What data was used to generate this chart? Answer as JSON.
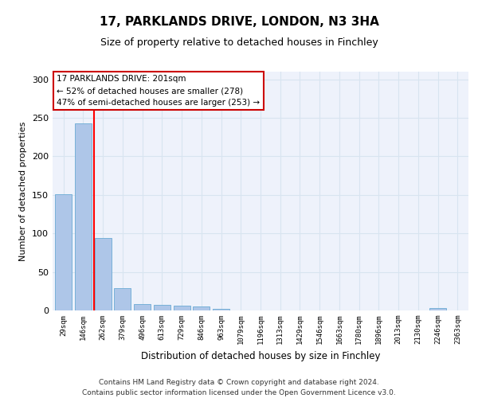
{
  "title1": "17, PARKLANDS DRIVE, LONDON, N3 3HA",
  "title2": "Size of property relative to detached houses in Finchley",
  "xlabel": "Distribution of detached houses by size in Finchley",
  "ylabel": "Number of detached properties",
  "categories": [
    "29sqm",
    "146sqm",
    "262sqm",
    "379sqm",
    "496sqm",
    "613sqm",
    "729sqm",
    "846sqm",
    "963sqm",
    "1079sqm",
    "1196sqm",
    "1313sqm",
    "1429sqm",
    "1546sqm",
    "1663sqm",
    "1780sqm",
    "1896sqm",
    "2013sqm",
    "2130sqm",
    "2246sqm",
    "2363sqm"
  ],
  "values": [
    151,
    243,
    94,
    29,
    8,
    7,
    6,
    5,
    2,
    0,
    0,
    0,
    0,
    0,
    0,
    0,
    0,
    0,
    0,
    3,
    0
  ],
  "bar_color": "#aec6e8",
  "bar_edgecolor": "#6aaad4",
  "grid_color": "#d8e4f0",
  "bg_color": "#eef2fb",
  "red_line_x": 1.55,
  "annotation_text": "17 PARKLANDS DRIVE: 201sqm\n← 52% of detached houses are smaller (278)\n47% of semi-detached houses are larger (253) →",
  "annotation_box_facecolor": "#ffffff",
  "annotation_box_edgecolor": "#cc0000",
  "footer_text": "Contains HM Land Registry data © Crown copyright and database right 2024.\nContains public sector information licensed under the Open Government Licence v3.0.",
  "ylim": [
    0,
    310
  ],
  "yticks": [
    0,
    50,
    100,
    150,
    200,
    250,
    300
  ]
}
